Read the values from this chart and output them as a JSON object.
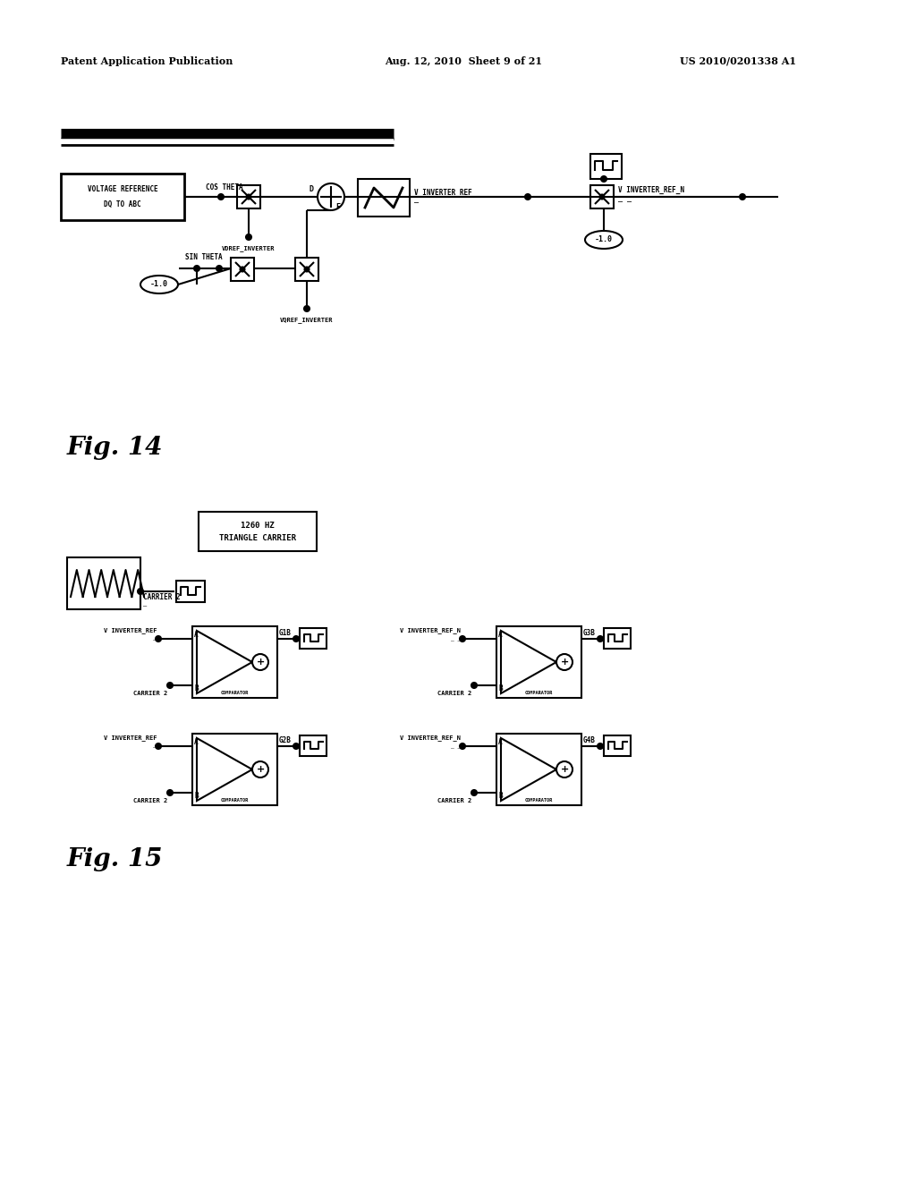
{
  "bg_color": "#ffffff",
  "header_left": "Patent Application Publication",
  "header_mid": "Aug. 12, 2010  Sheet 9 of 21",
  "header_right": "US 2010/0201338 A1",
  "fig14_label": "Fig. 14",
  "fig15_label": "Fig. 15"
}
